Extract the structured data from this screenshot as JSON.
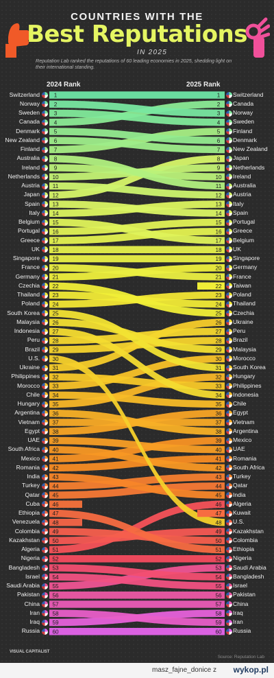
{
  "header": {
    "line1": "COUNTRIES WITH THE",
    "line2": "Best Reputations",
    "line3": "IN 2025",
    "subtitle": "Reputation Lab ranked the reputations of 60 leading economies in 2025, shedding light on their international standing.",
    "col_left": "2024 Rank",
    "col_right": "2025 Rank"
  },
  "footer": {
    "source": "Source: Reputation Lab",
    "logo": "VISUAL CAPITALIST",
    "site_user": "masz_fajne_donice z",
    "site_name": "wykop.pl"
  },
  "colors": {
    "accent": "#e5f562",
    "background": "#2b2b2b",
    "hand_left": "#f05a28",
    "hand_right": "#f0509a"
  },
  "chart_data": {
    "type": "bump",
    "title": "Countries with the Best Reputations in 2025",
    "xlabel": "",
    "ylabel": "",
    "x": [
      "2024 Rank",
      "2025 Rank"
    ],
    "rank_range": [
      1,
      60
    ],
    "ranks_2024": [
      {
        "rank": 1,
        "country": "Switzerland"
      },
      {
        "rank": 2,
        "country": "Norway"
      },
      {
        "rank": 3,
        "country": "Sweden"
      },
      {
        "rank": 4,
        "country": "Canada"
      },
      {
        "rank": 5,
        "country": "Denmark"
      },
      {
        "rank": 6,
        "country": "New Zealand"
      },
      {
        "rank": 7,
        "country": "Finland"
      },
      {
        "rank": 8,
        "country": "Australia"
      },
      {
        "rank": 9,
        "country": "Ireland"
      },
      {
        "rank": 10,
        "country": "Netherlands"
      },
      {
        "rank": 11,
        "country": "Austria"
      },
      {
        "rank": 12,
        "country": "Japan"
      },
      {
        "rank": 13,
        "country": "Spain"
      },
      {
        "rank": 14,
        "country": "Italy"
      },
      {
        "rank": 15,
        "country": "Belgium"
      },
      {
        "rank": 16,
        "country": "Portugal"
      },
      {
        "rank": 17,
        "country": "Greece"
      },
      {
        "rank": 18,
        "country": "UK"
      },
      {
        "rank": 19,
        "country": "Singapore"
      },
      {
        "rank": 20,
        "country": "France"
      },
      {
        "rank": 21,
        "country": "Germany"
      },
      {
        "rank": 22,
        "country": "Czechia"
      },
      {
        "rank": 23,
        "country": "Thailand"
      },
      {
        "rank": 24,
        "country": "Poland"
      },
      {
        "rank": 25,
        "country": "South Korea"
      },
      {
        "rank": 26,
        "country": "Malaysia"
      },
      {
        "rank": 27,
        "country": "Indonesia"
      },
      {
        "rank": 28,
        "country": "Peru"
      },
      {
        "rank": 29,
        "country": "Brazil"
      },
      {
        "rank": 30,
        "country": "U.S."
      },
      {
        "rank": 31,
        "country": "Ukraine"
      },
      {
        "rank": 32,
        "country": "Philippines"
      },
      {
        "rank": 33,
        "country": "Morocco"
      },
      {
        "rank": 34,
        "country": "Chile"
      },
      {
        "rank": 35,
        "country": "Hungary"
      },
      {
        "rank": 36,
        "country": "Argentina"
      },
      {
        "rank": 37,
        "country": "Vietnam"
      },
      {
        "rank": 38,
        "country": "Egypt"
      },
      {
        "rank": 39,
        "country": "UAE"
      },
      {
        "rank": 40,
        "country": "South Africa"
      },
      {
        "rank": 41,
        "country": "Mexico"
      },
      {
        "rank": 42,
        "country": "Romania"
      },
      {
        "rank": 43,
        "country": "India"
      },
      {
        "rank": 44,
        "country": "Turkey"
      },
      {
        "rank": 45,
        "country": "Qatar"
      },
      {
        "rank": 46,
        "country": "Cuba"
      },
      {
        "rank": 47,
        "country": "Ethiopia"
      },
      {
        "rank": 48,
        "country": "Venezuela"
      },
      {
        "rank": 49,
        "country": "Colombia"
      },
      {
        "rank": 50,
        "country": "Kazakhstan"
      },
      {
        "rank": 51,
        "country": "Algeria"
      },
      {
        "rank": 52,
        "country": "Nigeria"
      },
      {
        "rank": 53,
        "country": "Bangladesh"
      },
      {
        "rank": 54,
        "country": "Israel"
      },
      {
        "rank": 55,
        "country": "Saudi Arabia"
      },
      {
        "rank": 56,
        "country": "Pakistan"
      },
      {
        "rank": 57,
        "country": "China"
      },
      {
        "rank": 58,
        "country": "Iran"
      },
      {
        "rank": 59,
        "country": "Iraq"
      },
      {
        "rank": 60,
        "country": "Russia"
      }
    ],
    "ranks_2025": [
      {
        "rank": 1,
        "country": "Switzerland"
      },
      {
        "rank": 2,
        "country": "Canada"
      },
      {
        "rank": 3,
        "country": "Norway"
      },
      {
        "rank": 4,
        "country": "Sweden"
      },
      {
        "rank": 5,
        "country": "Finland"
      },
      {
        "rank": 6,
        "country": "Denmark"
      },
      {
        "rank": 7,
        "country": "New Zealand"
      },
      {
        "rank": 8,
        "country": "Japan"
      },
      {
        "rank": 9,
        "country": "Netherlands"
      },
      {
        "rank": 10,
        "country": "Ireland"
      },
      {
        "rank": 11,
        "country": "Australia"
      },
      {
        "rank": 12,
        "country": "Austria"
      },
      {
        "rank": 13,
        "country": "Italy"
      },
      {
        "rank": 14,
        "country": "Spain"
      },
      {
        "rank": 15,
        "country": "Portugal"
      },
      {
        "rank": 16,
        "country": "Greece"
      },
      {
        "rank": 17,
        "country": "Belgium"
      },
      {
        "rank": 18,
        "country": "UK"
      },
      {
        "rank": 19,
        "country": "Singapore"
      },
      {
        "rank": 20,
        "country": "Germany"
      },
      {
        "rank": 21,
        "country": "France"
      },
      {
        "rank": 22,
        "country": "Taiwan"
      },
      {
        "rank": 23,
        "country": "Poland"
      },
      {
        "rank": 24,
        "country": "Thailand"
      },
      {
        "rank": 25,
        "country": "Czechia"
      },
      {
        "rank": 26,
        "country": "Ukraine"
      },
      {
        "rank": 27,
        "country": "Peru"
      },
      {
        "rank": 28,
        "country": "Brazil"
      },
      {
        "rank": 29,
        "country": "Malaysia"
      },
      {
        "rank": 30,
        "country": "Morocco"
      },
      {
        "rank": 31,
        "country": "South Korea"
      },
      {
        "rank": 32,
        "country": "Hungary"
      },
      {
        "rank": 33,
        "country": "Philippines"
      },
      {
        "rank": 34,
        "country": "Indonesia"
      },
      {
        "rank": 35,
        "country": "Chile"
      },
      {
        "rank": 36,
        "country": "Egypt"
      },
      {
        "rank": 37,
        "country": "Vietnam"
      },
      {
        "rank": 38,
        "country": "Argentina"
      },
      {
        "rank": 39,
        "country": "Mexico"
      },
      {
        "rank": 40,
        "country": "UAE"
      },
      {
        "rank": 41,
        "country": "Romania"
      },
      {
        "rank": 42,
        "country": "South Africa"
      },
      {
        "rank": 43,
        "country": "Turkey"
      },
      {
        "rank": 44,
        "country": "Qatar"
      },
      {
        "rank": 45,
        "country": "India"
      },
      {
        "rank": 46,
        "country": "Algeria"
      },
      {
        "rank": 47,
        "country": "Kuwait"
      },
      {
        "rank": 48,
        "country": "U.S."
      },
      {
        "rank": 49,
        "country": "Kazakhstan"
      },
      {
        "rank": 50,
        "country": "Colombia"
      },
      {
        "rank": 51,
        "country": "Ethiopia"
      },
      {
        "rank": 52,
        "country": "Nigeria"
      },
      {
        "rank": 53,
        "country": "Saudi Arabia"
      },
      {
        "rank": 54,
        "country": "Bangladesh"
      },
      {
        "rank": 55,
        "country": "Israel"
      },
      {
        "rank": 56,
        "country": "Pakistan"
      },
      {
        "rank": 57,
        "country": "China"
      },
      {
        "rank": 58,
        "country": "Iraq"
      },
      {
        "rank": 59,
        "country": "Iran"
      },
      {
        "rank": 60,
        "country": "Russia"
      }
    ]
  }
}
